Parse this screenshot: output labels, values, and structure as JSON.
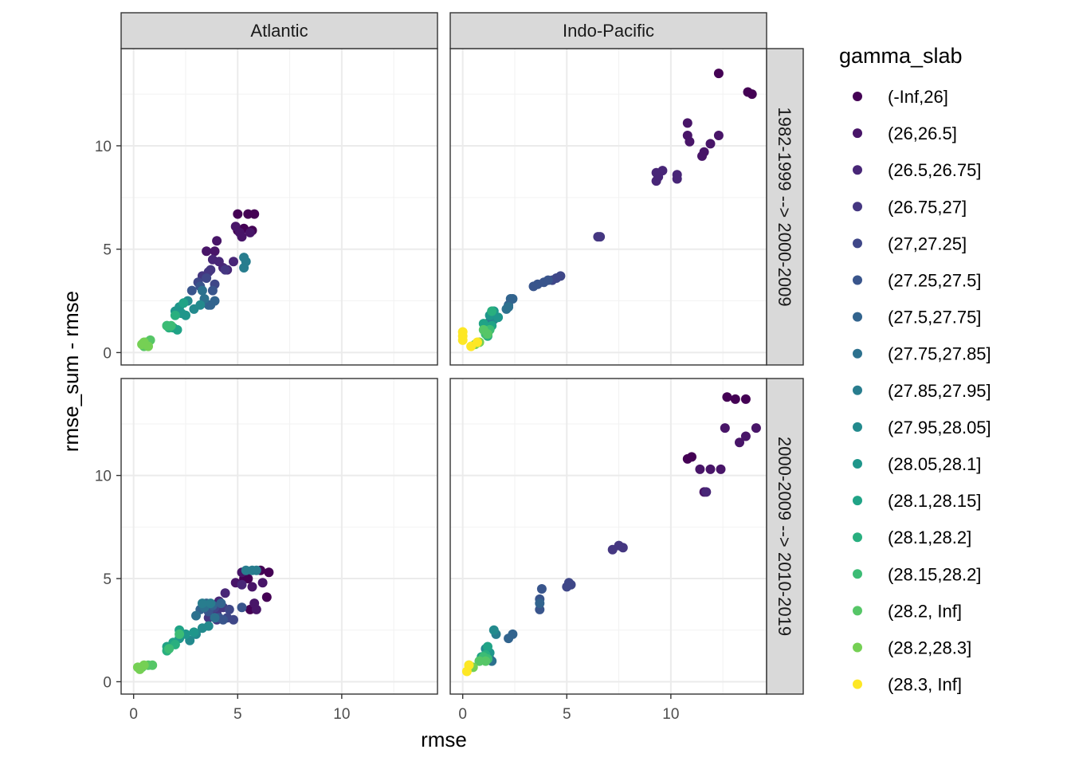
{
  "chart_data": {
    "type": "scatter",
    "xlabel": "rmse",
    "ylabel": "rmse_sum - rmse",
    "xlim": [
      -0.6,
      14.6
    ],
    "ylim": [
      -0.6,
      14.7
    ],
    "x_ticks": [
      0,
      5,
      10
    ],
    "y_ticks": [
      0,
      5,
      10
    ],
    "grid": true,
    "facet_cols": [
      "Atlantic",
      "Indo-Pacific"
    ],
    "facet_rows": [
      "1982-1999 --> 2000-2009",
      "2000-2009 --> 2010-2019"
    ],
    "legend": {
      "title": "gamma_slab",
      "position": "right",
      "items": [
        {
          "label": "(-Inf,26]",
          "color": "#440154"
        },
        {
          "label": "(26,26.5]",
          "color": "#481568"
        },
        {
          "label": "(26.5,26.75]",
          "color": "#482677"
        },
        {
          "label": "(26.75,27]",
          "color": "#453781"
        },
        {
          "label": "(27,27.25]",
          "color": "#3F4788"
        },
        {
          "label": "(27.25,27.5]",
          "color": "#39558C"
        },
        {
          "label": "(27.5,27.75]",
          "color": "#32648E"
        },
        {
          "label": "(27.75,27.85]",
          "color": "#2D718E"
        },
        {
          "label": "(27.85,27.95]",
          "color": "#287D8E"
        },
        {
          "label": "(27.95,28.05]",
          "color": "#238A8D"
        },
        {
          "label": "(28.05,28.1]",
          "color": "#1F968B"
        },
        {
          "label": "(28.1,28.15]",
          "color": "#20A386"
        },
        {
          "label": "(28.1,28.2]",
          "color": "#29AF7F"
        },
        {
          "label": "(28.15,28.2]",
          "color": "#3CBC75"
        },
        {
          "label": "(28.2, Inf]",
          "color": "#56C667"
        },
        {
          "label": "(28.2,28.3]",
          "color": "#75D054"
        },
        {
          "label": "(28.3, Inf]",
          "color": "#FDE725"
        }
      ]
    },
    "panels": [
      {
        "col": 0,
        "row": 0,
        "points": [
          [
            5.0,
            6.7,
            0
          ],
          [
            5.5,
            6.7,
            0
          ],
          [
            5.8,
            6.7,
            0
          ],
          [
            5.3,
            6.0,
            0
          ],
          [
            5.0,
            5.9,
            0
          ],
          [
            5.7,
            5.9,
            0
          ],
          [
            4.0,
            5.4,
            1
          ],
          [
            3.5,
            4.9,
            1
          ],
          [
            3.9,
            4.9,
            1
          ],
          [
            4.9,
            6.1,
            1
          ],
          [
            5.1,
            5.8,
            1
          ],
          [
            5.6,
            5.8,
            1
          ],
          [
            5.2,
            5.6,
            1
          ],
          [
            3.8,
            4.5,
            2
          ],
          [
            4.1,
            4.4,
            2
          ],
          [
            4.3,
            4.1,
            2
          ],
          [
            4.8,
            4.4,
            2
          ],
          [
            4.5,
            4.0,
            2
          ],
          [
            3.3,
            3.7,
            3
          ],
          [
            3.6,
            3.9,
            3
          ],
          [
            3.7,
            4.0,
            3
          ],
          [
            4.4,
            4.0,
            3
          ],
          [
            3.1,
            3.4,
            4
          ],
          [
            3.5,
            3.6,
            4
          ],
          [
            3.9,
            3.3,
            4
          ],
          [
            2.8,
            3.0,
            5
          ],
          [
            3.2,
            3.2,
            5
          ],
          [
            3.8,
            3.0,
            5
          ],
          [
            3.6,
            2.3,
            6
          ],
          [
            3.9,
            2.5,
            6
          ],
          [
            3.7,
            2.3,
            6
          ],
          [
            3.3,
            3.0,
            7
          ],
          [
            3.4,
            2.6,
            7
          ],
          [
            5.3,
            4.6,
            8
          ],
          [
            5.3,
            4.1,
            8
          ],
          [
            5.4,
            4.4,
            8
          ],
          [
            2.6,
            2.5,
            9
          ],
          [
            3.2,
            2.3,
            9
          ],
          [
            2.9,
            2.1,
            9
          ],
          [
            2.0,
            2.0,
            10
          ],
          [
            2.2,
            2.2,
            10
          ],
          [
            2.5,
            1.8,
            10
          ],
          [
            2.3,
            1.9,
            10
          ],
          [
            1.6,
            1.3,
            11
          ],
          [
            1.9,
            1.2,
            11
          ],
          [
            2.1,
            1.1,
            11
          ],
          [
            2.4,
            2.4,
            11
          ],
          [
            1.7,
            1.2,
            12
          ],
          [
            2.0,
            1.8,
            12
          ],
          [
            1.6,
            1.3,
            13
          ],
          [
            1.8,
            1.3,
            13
          ],
          [
            0.6,
            0.5,
            14
          ],
          [
            0.8,
            0.6,
            14
          ],
          [
            0.5,
            0.3,
            14
          ],
          [
            0.4,
            0.4,
            15
          ],
          [
            0.7,
            0.3,
            15
          ],
          [
            0.5,
            0.5,
            15
          ]
        ]
      },
      {
        "col": 1,
        "row": 0,
        "points": [
          [
            12.3,
            13.5,
            0
          ],
          [
            13.9,
            12.5,
            0
          ],
          [
            13.7,
            12.6,
            0
          ],
          [
            10.8,
            11.1,
            1
          ],
          [
            10.8,
            10.5,
            1
          ],
          [
            10.9,
            10.2,
            1
          ],
          [
            12.3,
            10.5,
            1
          ],
          [
            11.9,
            10.1,
            1
          ],
          [
            11.6,
            9.7,
            1
          ],
          [
            11.5,
            9.5,
            1
          ],
          [
            9.3,
            8.7,
            2
          ],
          [
            9.6,
            8.8,
            2
          ],
          [
            10.3,
            8.6,
            2
          ],
          [
            10.3,
            8.4,
            2
          ],
          [
            9.3,
            8.3,
            2
          ],
          [
            9.4,
            8.5,
            2
          ],
          [
            6.5,
            5.6,
            3
          ],
          [
            6.6,
            5.6,
            3
          ],
          [
            4.5,
            3.6,
            4
          ],
          [
            4.7,
            3.7,
            4
          ],
          [
            4.3,
            3.5,
            4
          ],
          [
            3.6,
            3.3,
            5
          ],
          [
            3.9,
            3.4,
            5
          ],
          [
            4.1,
            3.5,
            5
          ],
          [
            3.4,
            3.2,
            5
          ],
          [
            2.3,
            2.6,
            6
          ],
          [
            2.4,
            2.6,
            6
          ],
          [
            2.2,
            2.3,
            6
          ],
          [
            2.1,
            2.1,
            7
          ],
          [
            2.2,
            2.2,
            7
          ],
          [
            1.3,
            1.5,
            8
          ],
          [
            1.5,
            1.6,
            8
          ],
          [
            1.1,
            1.3,
            8
          ],
          [
            1.2,
            1.2,
            9
          ],
          [
            1.6,
            1.7,
            9
          ],
          [
            1.3,
            1.8,
            10
          ],
          [
            1.5,
            2.0,
            10
          ],
          [
            1.7,
            1.7,
            10
          ],
          [
            1.2,
            1.0,
            11
          ],
          [
            1.0,
            1.4,
            11
          ],
          [
            1.4,
            1.3,
            11
          ],
          [
            1.4,
            2.0,
            12
          ],
          [
            1.2,
            0.8,
            12
          ],
          [
            1.1,
            0.9,
            13
          ],
          [
            1.3,
            1.1,
            13
          ],
          [
            1.0,
            1.1,
            14
          ],
          [
            1.2,
            0.9,
            14
          ],
          [
            0.8,
            0.5,
            15
          ],
          [
            0.6,
            0.4,
            15
          ],
          [
            0.0,
            0.8,
            16
          ],
          [
            0.0,
            1.0,
            16
          ],
          [
            0.4,
            0.3,
            16
          ],
          [
            0.7,
            0.5,
            16
          ],
          [
            0.0,
            0.6,
            16
          ]
        ]
      },
      {
        "col": 0,
        "row": 1,
        "points": [
          [
            5.3,
            5.0,
            0
          ],
          [
            5.5,
            5.0,
            0
          ],
          [
            6.1,
            5.4,
            0
          ],
          [
            6.5,
            5.3,
            0
          ],
          [
            6.4,
            4.1,
            0
          ],
          [
            5.6,
            3.5,
            0
          ],
          [
            5.2,
            5.3,
            1
          ],
          [
            5.7,
            4.6,
            1
          ],
          [
            6.2,
            4.8,
            1
          ],
          [
            5.8,
            3.8,
            1
          ],
          [
            5.9,
            3.5,
            1
          ],
          [
            4.9,
            4.8,
            1
          ],
          [
            4.4,
            4.3,
            2
          ],
          [
            4.1,
            3.9,
            2
          ],
          [
            5.2,
            4.7,
            2
          ],
          [
            3.6,
            3.1,
            3
          ],
          [
            4.0,
            3.3,
            3
          ],
          [
            4.3,
            3.6,
            3
          ],
          [
            4.0,
            3.0,
            3
          ],
          [
            4.5,
            3.1,
            4
          ],
          [
            4.8,
            3.0,
            4
          ],
          [
            4.6,
            3.5,
            4
          ],
          [
            3.9,
            3.6,
            4
          ],
          [
            3.6,
            3.4,
            5
          ],
          [
            4.1,
            3.1,
            5
          ],
          [
            4.3,
            3.0,
            5
          ],
          [
            5.2,
            3.6,
            5
          ],
          [
            3.5,
            3.8,
            6
          ],
          [
            3.8,
            3.7,
            6
          ],
          [
            4.2,
            3.8,
            6
          ],
          [
            3.2,
            3.5,
            6
          ],
          [
            3.0,
            3.2,
            7
          ],
          [
            3.4,
            3.6,
            7
          ],
          [
            3.9,
            3.1,
            7
          ],
          [
            3.3,
            3.8,
            8
          ],
          [
            3.7,
            3.8,
            8
          ],
          [
            5.4,
            5.4,
            8
          ],
          [
            5.7,
            5.4,
            8
          ],
          [
            5.9,
            5.4,
            8
          ],
          [
            2.7,
            2.0,
            9
          ],
          [
            3.0,
            2.3,
            9
          ],
          [
            3.3,
            2.6,
            9
          ],
          [
            3.6,
            2.7,
            9
          ],
          [
            2.2,
            2.1,
            10
          ],
          [
            2.5,
            2.3,
            10
          ],
          [
            2.9,
            2.4,
            10
          ],
          [
            1.6,
            1.7,
            11
          ],
          [
            1.9,
            1.9,
            11
          ],
          [
            2.2,
            2.5,
            11
          ],
          [
            1.6,
            1.5,
            12
          ],
          [
            2.0,
            1.8,
            12
          ],
          [
            1.7,
            1.6,
            13
          ],
          [
            2.2,
            2.3,
            13
          ],
          [
            0.4,
            0.7,
            14
          ],
          [
            0.7,
            0.8,
            14
          ],
          [
            0.9,
            0.8,
            14
          ],
          [
            0.3,
            0.6,
            15
          ],
          [
            0.5,
            0.8,
            15
          ],
          [
            0.2,
            0.7,
            15
          ]
        ]
      },
      {
        "col": 1,
        "row": 1,
        "points": [
          [
            12.7,
            13.8,
            0
          ],
          [
            13.1,
            13.7,
            0
          ],
          [
            13.6,
            13.7,
            0
          ],
          [
            10.8,
            10.8,
            0
          ],
          [
            11.0,
            10.9,
            0
          ],
          [
            12.6,
            12.3,
            1
          ],
          [
            13.3,
            11.6,
            1
          ],
          [
            13.6,
            11.9,
            1
          ],
          [
            14.1,
            12.3,
            1
          ],
          [
            11.4,
            10.3,
            1
          ],
          [
            11.9,
            10.3,
            1
          ],
          [
            12.4,
            10.3,
            1
          ],
          [
            11.6,
            9.2,
            1
          ],
          [
            11.7,
            9.2,
            2
          ],
          [
            7.2,
            6.4,
            3
          ],
          [
            7.5,
            6.6,
            3
          ],
          [
            7.7,
            6.5,
            3
          ],
          [
            5.1,
            4.8,
            4
          ],
          [
            5.2,
            4.7,
            4
          ],
          [
            5.0,
            4.6,
            4
          ],
          [
            3.8,
            4.5,
            5
          ],
          [
            3.7,
            4.0,
            5
          ],
          [
            3.7,
            3.5,
            5
          ],
          [
            3.7,
            3.8,
            6
          ],
          [
            2.4,
            2.3,
            6
          ],
          [
            2.2,
            2.1,
            6
          ],
          [
            1.4,
            1.0,
            7
          ],
          [
            1.3,
            1.1,
            7
          ],
          [
            1.0,
            1.2,
            8
          ],
          [
            1.6,
            2.3,
            8
          ],
          [
            1.1,
            1.6,
            9
          ],
          [
            1.5,
            2.5,
            9
          ],
          [
            0.8,
            1.0,
            10
          ],
          [
            1.3,
            1.4,
            10
          ],
          [
            1.2,
            1.7,
            11
          ],
          [
            0.9,
            1.2,
            11
          ],
          [
            1.0,
            1.1,
            12
          ],
          [
            1.1,
            1.3,
            12
          ],
          [
            1.0,
            1.2,
            13
          ],
          [
            1.2,
            1.1,
            13
          ],
          [
            0.8,
            1.0,
            14
          ],
          [
            1.1,
            1.0,
            14
          ],
          [
            0.3,
            0.8,
            15
          ],
          [
            0.5,
            0.7,
            15
          ],
          [
            0.2,
            0.5,
            16
          ],
          [
            0.3,
            0.8,
            16
          ]
        ]
      }
    ]
  }
}
